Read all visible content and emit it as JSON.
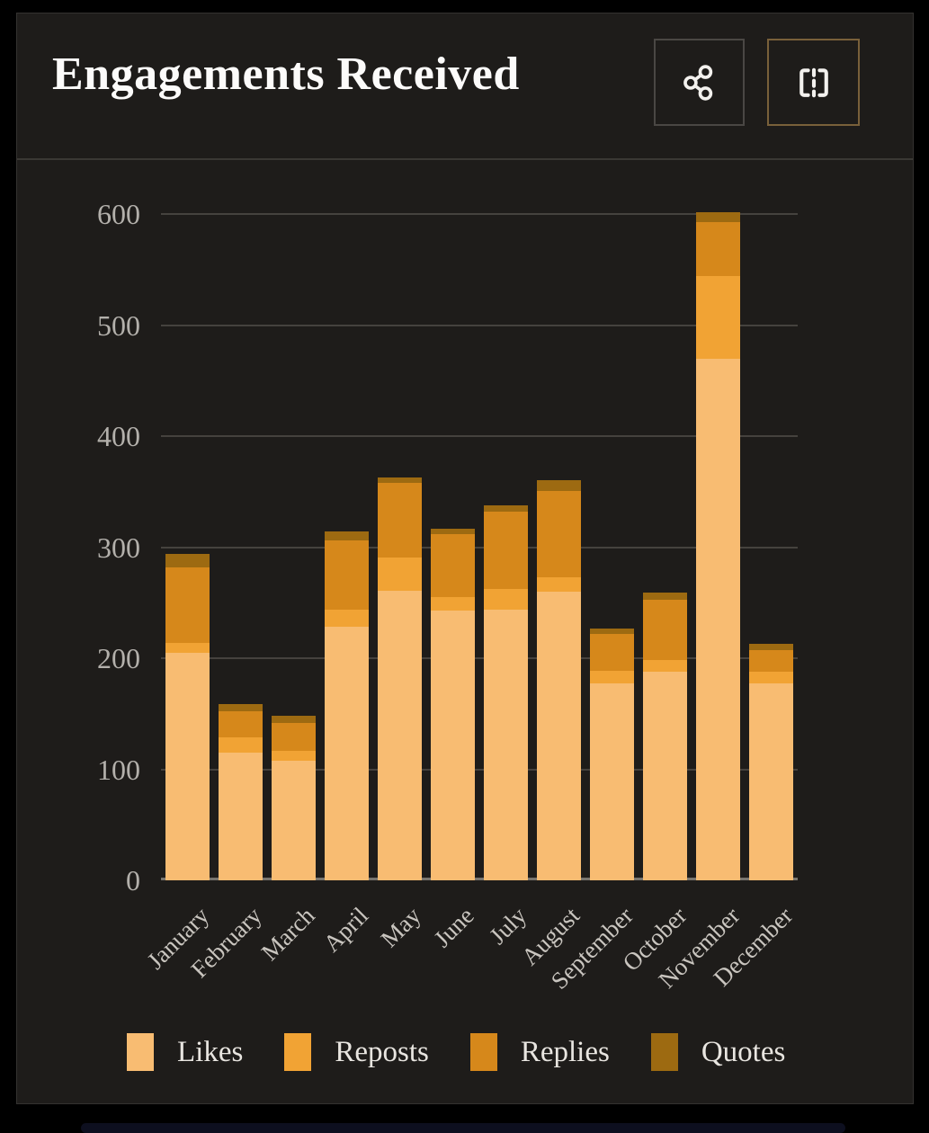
{
  "header": {
    "title": "Engagements Received",
    "share_button": "share",
    "snap_button": "snapshot"
  },
  "chart_data": {
    "type": "bar",
    "stacked": true,
    "title": "Engagements Received",
    "categories": [
      "January",
      "February",
      "March",
      "April",
      "May",
      "June",
      "July",
      "August",
      "September",
      "October",
      "November",
      "December"
    ],
    "series": [
      {
        "name": "Likes",
        "color": "#f8bc72",
        "values": [
          205,
          115,
          108,
          228,
          261,
          243,
          244,
          260,
          177,
          188,
          470,
          177
        ]
      },
      {
        "name": "Reposts",
        "color": "#f1a334",
        "values": [
          9,
          14,
          9,
          16,
          30,
          12,
          18,
          13,
          12,
          10,
          74,
          11
        ]
      },
      {
        "name": "Replies",
        "color": "#d6881b",
        "values": [
          68,
          23,
          25,
          62,
          67,
          57,
          70,
          78,
          33,
          55,
          49,
          19
        ]
      },
      {
        "name": "Quotes",
        "color": "#9d6a11",
        "values": [
          12,
          7,
          6,
          8,
          5,
          5,
          6,
          9,
          5,
          6,
          9,
          6
        ]
      }
    ],
    "totals": [
      294,
      159,
      148,
      314,
      363,
      317,
      338,
      360,
      227,
      259,
      602,
      213
    ],
    "ylim": [
      0,
      600
    ],
    "y_ticks": [
      0,
      100,
      200,
      300,
      400,
      500,
      600
    ],
    "grid": true,
    "legend_position": "bottom",
    "colors": {
      "card_background": "#1e1c1a",
      "gridline": "#45423e",
      "axis_line": "#78756f",
      "tick_label": "#b3b0ab",
      "title_text": "#fcfbfa"
    }
  }
}
